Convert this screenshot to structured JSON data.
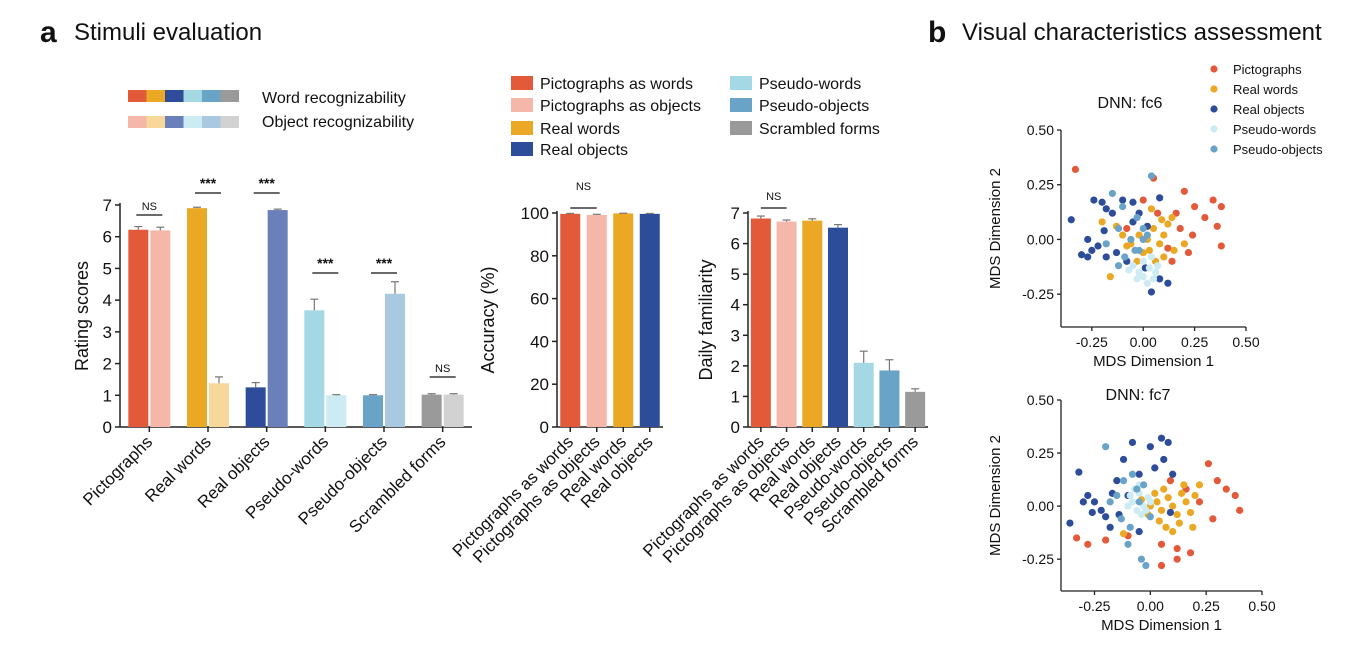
{
  "panel_a": {
    "letter": "a",
    "title": "Stimuli evaluation"
  },
  "panel_b": {
    "letter": "b",
    "title": "Visual characteristics assessment"
  },
  "strip_legend": {
    "word_label": "Word recognizability",
    "object_label": "Object recognizability",
    "word_colors": [
      "#e35a3a",
      "#eaa825",
      "#2d4c9a",
      "#a3d8e4",
      "#6aa3c8",
      "#9a9a9a"
    ],
    "object_colors": [
      "#f4b7aa",
      "#f7d79a",
      "#6b7fba",
      "#cdebf2",
      "#a9c9e0",
      "#d2d2d2"
    ]
  },
  "mid_legend": [
    {
      "label": "Pictographs as words",
      "color": "#e35a3a"
    },
    {
      "label": "Pictographs as objects",
      "color": "#f4b7aa"
    },
    {
      "label": "Real words",
      "color": "#eaa825"
    },
    {
      "label": "Real objects",
      "color": "#2d4c9a"
    },
    {
      "label": "Pseudo-words",
      "color": "#a3d8e4"
    },
    {
      "label": "Pseudo-objects",
      "color": "#6aa3c8"
    },
    {
      "label": "Scrambled forms",
      "color": "#9a9a9a"
    }
  ],
  "chart_data": [
    {
      "type": "bar",
      "ylabel": "Rating scores",
      "ylim": [
        0,
        7
      ],
      "yticks": [
        "0",
        "1",
        "2",
        "3",
        "4",
        "5",
        "6",
        "7"
      ],
      "categories": [
        "Pictographs",
        "Real words",
        "Real objects",
        "Pseudo-words",
        "Pseudo-objects",
        "Scrambled forms"
      ],
      "series": [
        {
          "name": "Word recognizability",
          "values": [
            6.22,
            6.9,
            1.25,
            3.68,
            1.0,
            1.02
          ],
          "errors": [
            0.1,
            0.03,
            0.15,
            0.35,
            0.02,
            0.03
          ]
        },
        {
          "name": "Object recognizability",
          "values": [
            6.2,
            1.38,
            6.84,
            1.0,
            4.2,
            1.02
          ],
          "errors": [
            0.1,
            0.2,
            0.03,
            0.02,
            0.38,
            0.03
          ]
        }
      ],
      "significance": [
        "NS",
        "***",
        "***",
        "***",
        "***",
        "NS"
      ]
    },
    {
      "type": "bar",
      "ylabel": "Accuracy (%)",
      "ylim": [
        0,
        100
      ],
      "yticks": [
        "0",
        "20",
        "40",
        "60",
        "80",
        "100"
      ],
      "categories": [
        "Pictographs as words",
        "Pictographs as objects",
        "Real words",
        "Real objects"
      ],
      "values": [
        99.6,
        99.1,
        99.8,
        99.6
      ],
      "errors": [
        0.2,
        0.3,
        0.1,
        0.2
      ],
      "colors": [
        "#e35a3a",
        "#f4b7aa",
        "#eaa825",
        "#2d4c9a"
      ],
      "significance": [
        "NS"
      ]
    },
    {
      "type": "bar",
      "ylabel": "Daily familiarity",
      "ylim": [
        0,
        7
      ],
      "yticks": [
        "0",
        "1",
        "2",
        "3",
        "4",
        "5",
        "6",
        "7"
      ],
      "categories": [
        "Pictographs as words",
        "Pictographs as objects",
        "Real words",
        "Real objects",
        "Pseudo-words",
        "Pseudo-objects",
        "Scrambled forms"
      ],
      "values": [
        6.82,
        6.72,
        6.75,
        6.52,
        2.1,
        1.85,
        1.15
      ],
      "errors": [
        0.08,
        0.05,
        0.06,
        0.1,
        0.38,
        0.35,
        0.1
      ],
      "colors": [
        "#e35a3a",
        "#f4b7aa",
        "#eaa825",
        "#2d4c9a",
        "#a3d8e4",
        "#6aa3c8",
        "#9a9a9a"
      ],
      "significance": [
        "NS"
      ]
    },
    {
      "type": "scatter",
      "title": "DNN: fc6",
      "xlabel": "MDS Dimension 1",
      "ylabel": "MDS Dimension 2",
      "xlim": [
        -0.4,
        0.5
      ],
      "ylim": [
        -0.4,
        0.5
      ],
      "xticks": [
        "-0.25",
        "0.00",
        "0.25",
        "0.50"
      ],
      "yticks": [
        "-0.25",
        "0.00",
        "0.25",
        "0.50"
      ],
      "legend": "top-right",
      "series": [
        {
          "name": "Pictographs",
          "color": "#e35a3a",
          "points": [
            [
              -0.33,
              0.32
            ],
            [
              0.05,
              0.28
            ],
            [
              0.2,
              0.22
            ],
            [
              0.25,
              0.15
            ],
            [
              0.34,
              0.18
            ],
            [
              0.38,
              0.15
            ],
            [
              0.3,
              0.1
            ],
            [
              0.36,
              0.06
            ],
            [
              0.18,
              0.05
            ],
            [
              0.24,
              0.02
            ],
            [
              0.38,
              -0.03
            ],
            [
              0.22,
              -0.06
            ],
            [
              0.12,
              -0.04
            ],
            [
              0.14,
              -0.1
            ],
            [
              0.07,
              0.12
            ],
            [
              0.0,
              0.18
            ],
            [
              -0.08,
              0.05
            ],
            [
              0.16,
              0.12
            ]
          ]
        },
        {
          "name": "Real words",
          "color": "#eaa825",
          "points": [
            [
              -0.2,
              0.08
            ],
            [
              -0.13,
              0.06
            ],
            [
              -0.1,
              0.02
            ],
            [
              -0.06,
              -0.02
            ],
            [
              -0.02,
              0.02
            ],
            [
              0.02,
              0.0
            ],
            [
              0.05,
              0.05
            ],
            [
              0.08,
              -0.02
            ],
            [
              0.1,
              0.02
            ],
            [
              0.12,
              0.07
            ],
            [
              0.14,
              0.1
            ],
            [
              0.1,
              -0.08
            ],
            [
              0.06,
              -0.1
            ],
            [
              0.03,
              -0.05
            ],
            [
              0.0,
              -0.06
            ],
            [
              -0.03,
              -0.1
            ],
            [
              -0.16,
              -0.17
            ],
            [
              0.09,
              0.09
            ],
            [
              -0.08,
              -0.03
            ],
            [
              0.2,
              -0.02
            ],
            [
              0.04,
              0.14
            ],
            [
              0.15,
              -0.05
            ]
          ]
        },
        {
          "name": "Real objects",
          "color": "#2d4c9a",
          "points": [
            [
              -0.35,
              0.09
            ],
            [
              -0.27,
              0.0
            ],
            [
              -0.24,
              0.18
            ],
            [
              -0.2,
              0.17
            ],
            [
              -0.18,
              0.14
            ],
            [
              -0.15,
              0.12
            ],
            [
              -0.1,
              0.18
            ],
            [
              -0.05,
              0.17
            ],
            [
              -0.02,
              0.12
            ],
            [
              0.08,
              0.19
            ],
            [
              -0.25,
              -0.05
            ],
            [
              -0.22,
              -0.03
            ],
            [
              -0.3,
              -0.07
            ],
            [
              -0.18,
              -0.08
            ],
            [
              -0.13,
              -0.06
            ],
            [
              -0.08,
              -0.1
            ],
            [
              0.04,
              -0.24
            ],
            [
              0.08,
              -0.18
            ],
            [
              0.12,
              -0.2
            ],
            [
              -0.19,
              0.04
            ],
            [
              -0.05,
              0.08
            ],
            [
              0.02,
              0.06
            ],
            [
              -0.27,
              -0.08
            ],
            [
              0.01,
              -0.13
            ]
          ]
        },
        {
          "name": "Pseudo-words",
          "color": "#cdebf2",
          "points": [
            [
              -0.05,
              -0.12
            ],
            [
              -0.02,
              -0.15
            ],
            [
              0.0,
              -0.17
            ],
            [
              0.03,
              -0.13
            ],
            [
              0.05,
              -0.18
            ],
            [
              0.07,
              -0.12
            ],
            [
              0.02,
              -0.2
            ],
            [
              -0.07,
              -0.14
            ],
            [
              0.0,
              -0.1
            ],
            [
              0.06,
              -0.15
            ],
            [
              -0.03,
              -0.18
            ],
            [
              0.04,
              -0.08
            ]
          ]
        },
        {
          "name": "Pseudo-objects",
          "color": "#6aa3c8",
          "points": [
            [
              -0.15,
              0.21
            ],
            [
              -0.1,
              0.15
            ],
            [
              -0.03,
              0.1
            ],
            [
              0.0,
              0.05
            ],
            [
              0.04,
              0.29
            ],
            [
              -0.18,
              -0.02
            ],
            [
              -0.12,
              0.05
            ],
            [
              -0.06,
              0.0
            ],
            [
              0.02,
              0.02
            ],
            [
              -0.02,
              -0.05
            ],
            [
              -0.09,
              -0.08
            ],
            [
              -0.04,
              -0.05
            ],
            [
              -0.12,
              -0.12
            ],
            [
              0.0,
              0.0
            ]
          ]
        }
      ]
    },
    {
      "type": "scatter",
      "title": "DNN: fc7",
      "xlabel": "MDS Dimension 1",
      "ylabel": "MDS Dimension 2",
      "xlim": [
        -0.4,
        0.5
      ],
      "ylim": [
        -0.4,
        0.5
      ],
      "xticks": [
        "-0.25",
        "0.00",
        "0.25",
        "0.50"
      ],
      "yticks": [
        "-0.25",
        "0.00",
        "0.25",
        "0.50"
      ],
      "series": [
        {
          "name": "Pictographs",
          "color": "#e35a3a",
          "points": [
            [
              -0.33,
              -0.15
            ],
            [
              -0.28,
              -0.18
            ],
            [
              -0.2,
              -0.16
            ],
            [
              -0.1,
              -0.14
            ],
            [
              0.05,
              -0.18
            ],
            [
              0.12,
              -0.2
            ],
            [
              0.18,
              -0.22
            ],
            [
              0.26,
              0.2
            ],
            [
              0.3,
              0.12
            ],
            [
              0.34,
              0.08
            ],
            [
              0.38,
              0.05
            ],
            [
              0.4,
              -0.02
            ],
            [
              0.28,
              -0.06
            ],
            [
              0.22,
              0.02
            ],
            [
              0.16,
              0.08
            ],
            [
              0.05,
              -0.28
            ],
            [
              0.12,
              -0.25
            ],
            [
              0.09,
              0.12
            ]
          ]
        },
        {
          "name": "Real words",
          "color": "#eaa825",
          "points": [
            [
              0.0,
              0.0
            ],
            [
              0.03,
              0.02
            ],
            [
              0.05,
              -0.02
            ],
            [
              0.08,
              0.04
            ],
            [
              0.1,
              0.0
            ],
            [
              0.12,
              -0.04
            ],
            [
              0.14,
              0.06
            ],
            [
              0.15,
              0.1
            ],
            [
              0.02,
              0.06
            ],
            [
              -0.01,
              -0.04
            ],
            [
              0.04,
              -0.07
            ],
            [
              0.07,
              -0.1
            ],
            [
              0.1,
              -0.12
            ],
            [
              0.18,
              -0.03
            ],
            [
              0.2,
              0.05
            ],
            [
              0.22,
              0.1
            ],
            [
              -0.04,
              0.03
            ],
            [
              0.06,
              0.08
            ],
            [
              0.13,
              -0.08
            ],
            [
              0.19,
              -0.1
            ],
            [
              0.16,
              0.02
            ],
            [
              -0.12,
              -0.13
            ]
          ]
        },
        {
          "name": "Real objects",
          "color": "#2d4c9a",
          "points": [
            [
              -0.32,
              0.16
            ],
            [
              -0.36,
              -0.08
            ],
            [
              -0.28,
              0.05
            ],
            [
              -0.25,
              0.02
            ],
            [
              -0.22,
              -0.02
            ],
            [
              -0.2,
              -0.05
            ],
            [
              -0.17,
              0.06
            ],
            [
              -0.15,
              0.12
            ],
            [
              -0.12,
              0.22
            ],
            [
              -0.08,
              0.3
            ],
            [
              -0.05,
              0.15
            ],
            [
              0.0,
              0.28
            ],
            [
              0.05,
              0.32
            ],
            [
              0.08,
              0.3
            ],
            [
              0.1,
              0.15
            ],
            [
              -0.26,
              -0.03
            ],
            [
              -0.18,
              -0.1
            ],
            [
              -0.1,
              0.05
            ],
            [
              -0.05,
              -0.12
            ],
            [
              0.02,
              0.18
            ],
            [
              -0.14,
              -0.04
            ],
            [
              0.06,
              0.22
            ],
            [
              -0.3,
              0.02
            ],
            [
              0.09,
              -0.03
            ]
          ]
        },
        {
          "name": "Pseudo-words",
          "color": "#cdebf2",
          "points": [
            [
              -0.08,
              0.02
            ],
            [
              -0.05,
              0.06
            ],
            [
              -0.03,
              0.0
            ],
            [
              -0.06,
              -0.02
            ],
            [
              -0.01,
              0.04
            ],
            [
              -0.09,
              0.05
            ],
            [
              -0.04,
              -0.04
            ],
            [
              0.0,
              0.02
            ],
            [
              -0.07,
              0.08
            ],
            [
              -0.02,
              -0.02
            ],
            [
              -0.1,
              0.0
            ],
            [
              -0.05,
              0.1
            ]
          ]
        },
        {
          "name": "Pseudo-objects",
          "color": "#6aa3c8",
          "points": [
            [
              -0.2,
              0.28
            ],
            [
              -0.12,
              0.12
            ],
            [
              -0.08,
              0.15
            ],
            [
              -0.05,
              0.02
            ],
            [
              -0.1,
              -0.18
            ],
            [
              -0.04,
              -0.25
            ],
            [
              -0.02,
              -0.28
            ],
            [
              -0.15,
              0.05
            ],
            [
              -0.13,
              -0.06
            ],
            [
              -0.06,
              0.08
            ],
            [
              0.0,
              -0.05
            ],
            [
              -0.18,
              0.02
            ],
            [
              -0.09,
              -0.1
            ],
            [
              -0.03,
              0.1
            ]
          ]
        }
      ]
    }
  ]
}
